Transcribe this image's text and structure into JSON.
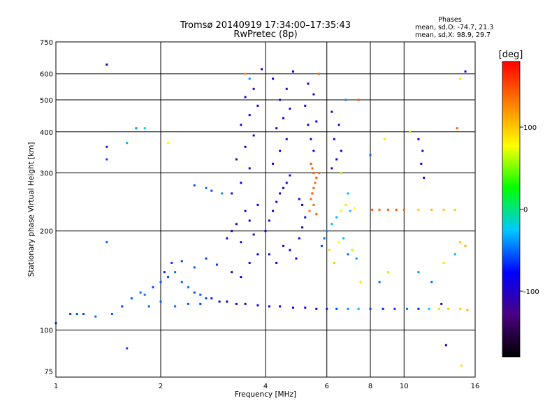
{
  "chart_data": {
    "type": "scatter",
    "title": "Tromsø 20140919 17:34:00–17:35:43",
    "subtitle": "RwPretec (8p)",
    "xlabel": "Frequency [MHz]",
    "ylabel": "Stationary phase Virtual Height [km]",
    "x_scale": "log",
    "y_scale": "log",
    "xlim": [
      1,
      16
    ],
    "ylim": [
      72,
      750
    ],
    "x_ticks": [
      1,
      2,
      4,
      6,
      8,
      10,
      16
    ],
    "x_tick_labels": [
      "1",
      "2",
      "4",
      "6",
      "8",
      "10",
      "16"
    ],
    "x_gridlines": [
      2,
      4,
      6,
      8,
      10
    ],
    "y_ticks": [
      75,
      100,
      200,
      300,
      400,
      500,
      600,
      750
    ],
    "y_tick_labels": [
      "75",
      "100",
      "200",
      "300",
      "400",
      "500",
      "600",
      "750"
    ],
    "y_gridlines": [
      100,
      200,
      300,
      400,
      500,
      600
    ],
    "grid": true,
    "phases_legend": {
      "heading": "Phases",
      "line1": "mean, sd,O: -74.7, 21.3",
      "line2": "mean, sd,X:  98.9, 29.7"
    },
    "colorbar": {
      "label": "[deg]",
      "range": [
        -180,
        180
      ],
      "ticks": [
        100,
        0,
        -100
      ],
      "tick_labels": [
        "100",
        "0",
        "-100"
      ],
      "colors": [
        "#000000",
        "#4b0082",
        "#0000ff",
        "#00c8ff",
        "#00ff00",
        "#ffff00",
        "#ff8000",
        "#ff0000"
      ]
    },
    "series": [
      {
        "points": [
          [
            1.0,
            105,
            -60
          ],
          [
            1.1,
            112,
            -60
          ],
          [
            1.15,
            112,
            -55
          ],
          [
            1.2,
            112,
            -60
          ],
          [
            1.3,
            110,
            -50
          ],
          [
            1.45,
            112,
            -55
          ],
          [
            1.55,
            118,
            -60
          ],
          [
            1.65,
            125,
            -55
          ],
          [
            1.75,
            130,
            -50
          ],
          [
            1.8,
            128,
            -45
          ],
          [
            1.9,
            135,
            -60
          ],
          [
            2.0,
            140,
            -55
          ],
          [
            2.05,
            150,
            -70
          ],
          [
            2.1,
            145,
            -60
          ],
          [
            2.15,
            160,
            -65
          ],
          [
            2.2,
            150,
            -50
          ],
          [
            2.3,
            140,
            -55
          ],
          [
            2.4,
            135,
            -50
          ],
          [
            2.5,
            130,
            -60
          ],
          [
            2.6,
            128,
            -55
          ],
          [
            2.7,
            125,
            -60
          ],
          [
            2.8,
            125,
            -70
          ],
          [
            2.95,
            122,
            -75
          ],
          [
            3.1,
            122,
            -85
          ],
          [
            3.3,
            120,
            -90
          ],
          [
            3.5,
            120,
            -95
          ],
          [
            3.8,
            119,
            -90
          ],
          [
            4.1,
            118,
            -90
          ],
          [
            4.4,
            118,
            -95
          ],
          [
            4.8,
            117,
            -90
          ],
          [
            5.2,
            117,
            -85
          ],
          [
            5.6,
            116,
            -95
          ],
          [
            6.0,
            116,
            -70
          ],
          [
            6.4,
            116,
            -60
          ],
          [
            6.9,
            116,
            -40
          ],
          [
            7.4,
            116,
            -30
          ],
          [
            8.0,
            116,
            -60
          ],
          [
            8.7,
            116,
            -70
          ],
          [
            9.4,
            116,
            -65
          ],
          [
            10.2,
            116,
            -50
          ],
          [
            11.0,
            116,
            -70
          ],
          [
            11.8,
            116,
            -20
          ],
          [
            12.6,
            116,
            90
          ],
          [
            13.4,
            116,
            100
          ],
          [
            14.5,
            116,
            100
          ],
          [
            15.2,
            115,
            110
          ],
          [
            2.0,
            122,
            -55
          ],
          [
            2.2,
            118,
            -50
          ],
          [
            2.4,
            120,
            -55
          ],
          [
            1.85,
            118,
            -50
          ],
          [
            2.6,
            120,
            -60
          ],
          [
            2.5,
            155,
            -55
          ],
          [
            2.7,
            165,
            -60
          ],
          [
            2.9,
            158,
            -65
          ],
          [
            2.3,
            162,
            -60
          ],
          [
            2.7,
            270,
            -50
          ],
          [
            2.5,
            275,
            -55
          ],
          [
            2.8,
            265,
            -60
          ],
          [
            3.0,
            260,
            -40
          ],
          [
            3.1,
            190,
            -90
          ],
          [
            3.2,
            200,
            -100
          ],
          [
            3.3,
            210,
            -95
          ],
          [
            3.4,
            185,
            -105
          ],
          [
            3.5,
            230,
            -90
          ],
          [
            3.6,
            215,
            -100
          ],
          [
            3.7,
            195,
            -110
          ],
          [
            3.8,
            240,
            -95
          ],
          [
            3.2,
            260,
            -95
          ],
          [
            3.4,
            280,
            -90
          ],
          [
            3.6,
            310,
            -100
          ],
          [
            3.3,
            330,
            -105
          ],
          [
            3.5,
            360,
            -95
          ],
          [
            3.7,
            390,
            -100
          ],
          [
            3.4,
            420,
            -110
          ],
          [
            3.6,
            450,
            -95
          ],
          [
            3.8,
            480,
            -100
          ],
          [
            3.5,
            510,
            -90
          ],
          [
            3.7,
            540,
            -95
          ],
          [
            3.6,
            580,
            -40
          ],
          [
            3.5,
            600,
            120
          ],
          [
            3.9,
            620,
            -90
          ],
          [
            3.2,
            150,
            -100
          ],
          [
            3.4,
            145,
            -90
          ],
          [
            3.6,
            160,
            -95
          ],
          [
            3.8,
            170,
            -85
          ],
          [
            4.0,
            200,
            -100
          ],
          [
            4.1,
            215,
            -95
          ],
          [
            4.2,
            230,
            -100
          ],
          [
            4.3,
            245,
            -90
          ],
          [
            4.4,
            260,
            -95
          ],
          [
            4.5,
            270,
            -100
          ],
          [
            4.6,
            280,
            -90
          ],
          [
            4.7,
            295,
            -95
          ],
          [
            4.2,
            320,
            -100
          ],
          [
            4.4,
            350,
            -90
          ],
          [
            4.6,
            380,
            -95
          ],
          [
            4.3,
            410,
            -100
          ],
          [
            4.5,
            440,
            -90
          ],
          [
            4.7,
            470,
            -95
          ],
          [
            4.4,
            500,
            -100
          ],
          [
            4.6,
            540,
            -95
          ],
          [
            4.2,
            580,
            -90
          ],
          [
            4.8,
            610,
            -85
          ],
          [
            4.1,
            170,
            -90
          ],
          [
            4.3,
            160,
            -95
          ],
          [
            4.5,
            180,
            -100
          ],
          [
            4.7,
            175,
            -85
          ],
          [
            4.9,
            165,
            -90
          ],
          [
            5.0,
            190,
            -90
          ],
          [
            5.1,
            205,
            -85
          ],
          [
            5.2,
            220,
            -95
          ],
          [
            5.0,
            250,
            -90
          ],
          [
            5.1,
            240,
            -80
          ],
          [
            5.4,
            250,
            140
          ],
          [
            5.45,
            260,
            150
          ],
          [
            5.5,
            270,
            145
          ],
          [
            5.55,
            280,
            140
          ],
          [
            5.6,
            290,
            150
          ],
          [
            5.5,
            300,
            145
          ],
          [
            5.45,
            310,
            140
          ],
          [
            5.4,
            320,
            150
          ],
          [
            5.5,
            240,
            140
          ],
          [
            5.35,
            230,
            130
          ],
          [
            5.6,
            225,
            145
          ],
          [
            5.7,
            300,
            140
          ],
          [
            5.3,
            420,
            -90
          ],
          [
            5.4,
            380,
            -95
          ],
          [
            5.5,
            350,
            -85
          ],
          [
            5.6,
            430,
            -90
          ],
          [
            5.2,
            480,
            -95
          ],
          [
            5.5,
            520,
            -100
          ],
          [
            5.3,
            560,
            -90
          ],
          [
            5.7,
            600,
            140
          ],
          [
            5.8,
            180,
            -60
          ],
          [
            5.9,
            190,
            -50
          ],
          [
            6.0,
            200,
            -40
          ],
          [
            6.2,
            210,
            -30
          ],
          [
            6.1,
            175,
            90
          ],
          [
            6.3,
            160,
            100
          ],
          [
            6.5,
            185,
            80
          ],
          [
            6.7,
            190,
            -30
          ],
          [
            6.9,
            170,
            -50
          ],
          [
            7.1,
            175,
            60
          ],
          [
            7.3,
            165,
            -40
          ],
          [
            7.5,
            140,
            90
          ],
          [
            6.4,
            220,
            -30
          ],
          [
            6.6,
            230,
            70
          ],
          [
            6.8,
            240,
            90
          ],
          [
            7.0,
            230,
            -20
          ],
          [
            7.2,
            235,
            80
          ],
          [
            6.2,
            310,
            -90
          ],
          [
            6.4,
            330,
            -100
          ],
          [
            6.6,
            350,
            -95
          ],
          [
            6.3,
            380,
            -90
          ],
          [
            6.5,
            420,
            -100
          ],
          [
            6.2,
            460,
            -95
          ],
          [
            6.8,
            500,
            -40
          ],
          [
            7.4,
            500,
            150
          ],
          [
            6.6,
            300,
            60
          ],
          [
            6.9,
            260,
            -30
          ],
          [
            8.1,
            232,
            150
          ],
          [
            8.5,
            232,
            140
          ],
          [
            9.0,
            232,
            145
          ],
          [
            9.5,
            232,
            150
          ],
          [
            10.0,
            232,
            140
          ],
          [
            11.0,
            232,
            100
          ],
          [
            12.0,
            232,
            110
          ],
          [
            13.0,
            232,
            100
          ],
          [
            14.0,
            232,
            100
          ],
          [
            8.5,
            140,
            -50
          ],
          [
            9.0,
            150,
            60
          ],
          [
            11.0,
            150,
            -40
          ],
          [
            12.0,
            140,
            -50
          ],
          [
            13.0,
            160,
            90
          ],
          [
            14.0,
            170,
            -30
          ],
          [
            14.5,
            185,
            100
          ],
          [
            15.0,
            180,
            110
          ],
          [
            11.0,
            380,
            -90
          ],
          [
            11.3,
            350,
            -100
          ],
          [
            11.2,
            320,
            -95
          ],
          [
            11.4,
            290,
            -90
          ],
          [
            1.4,
            640,
            -100
          ],
          [
            1.4,
            360,
            -70
          ],
          [
            1.4,
            330,
            -60
          ],
          [
            1.8,
            410,
            -20
          ],
          [
            1.7,
            410,
            -40
          ],
          [
            1.6,
            370,
            -30
          ],
          [
            2.1,
            370,
            80
          ],
          [
            1.4,
            185,
            -50
          ],
          [
            1.6,
            88,
            -60
          ],
          [
            14.2,
            410,
            140
          ],
          [
            14.5,
            580,
            90
          ],
          [
            15.0,
            610,
            -100
          ],
          [
            14.6,
            78,
            90
          ],
          [
            13.2,
            90,
            -90
          ],
          [
            12.8,
            120,
            -100
          ],
          [
            10.4,
            400,
            60
          ],
          [
            8.8,
            380,
            90
          ],
          [
            8.0,
            340,
            -50
          ]
        ]
      }
    ]
  }
}
